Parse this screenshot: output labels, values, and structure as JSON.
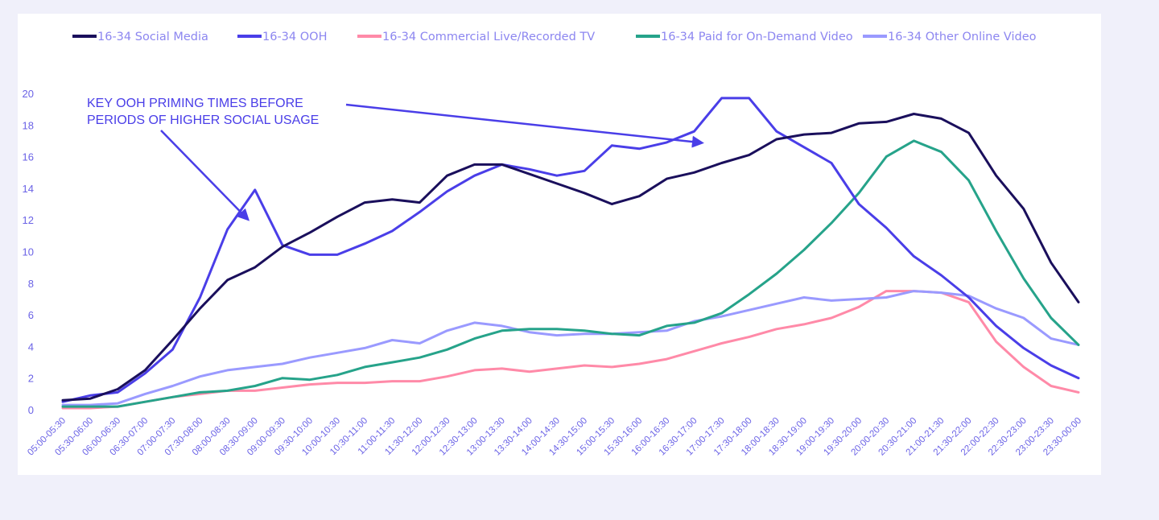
{
  "chart_data": {
    "type": "line",
    "title": "",
    "xlabel": "",
    "ylabel": "",
    "ylim": [
      0,
      20
    ],
    "yticks": [
      "0",
      "2",
      "4",
      "6",
      "8",
      "10",
      "12",
      "14",
      "16",
      "18",
      "20"
    ],
    "grid": false,
    "legend_position": "top",
    "categories": [
      "05:00-05:30",
      "05:30-06:00",
      "06:00-06:30",
      "06:30-07:00",
      "07:00-07:30",
      "07:30-08:00",
      "08:00-08:30",
      "08:30-09:00",
      "09:00-09:30",
      "09:30-10:00",
      "10:00-10:30",
      "10:30-11:00",
      "11:00-11:30",
      "11:30-12:00",
      "12:00-12:30",
      "12:30-13:00",
      "13:00-13:30",
      "13:30-14:00",
      "14:00-14:30",
      "14:30-15:00",
      "15:00-15:30",
      "15:30-16:00",
      "16:00-16:30",
      "16:30-17:00",
      "17:00-17:30",
      "17:30-18:00",
      "18:00-18:30",
      "18:30-19:00",
      "19:00-19:30",
      "19:30-20:00",
      "20:00-20:30",
      "20:30-21:00",
      "21:00-21:30",
      "21:30-22:00",
      "22:00-22:30",
      "22:30-23:00",
      "23:00-23:30",
      "23:30-00:00"
    ],
    "series": [
      {
        "name": "16-34 Social Media",
        "color": "#1a0f5c",
        "values": [
          0.6,
          0.7,
          1.3,
          2.5,
          4.4,
          6.4,
          8.2,
          9.0,
          10.3,
          11.2,
          12.2,
          13.1,
          13.3,
          13.1,
          14.8,
          15.5,
          15.5,
          14.9,
          14.3,
          13.7,
          13.0,
          13.5,
          14.6,
          15.0,
          15.6,
          16.1,
          17.1,
          17.4,
          17.5,
          18.1,
          18.2,
          18.7,
          18.4,
          17.5,
          14.8,
          12.7,
          9.3,
          6.8
        ]
      },
      {
        "name": "16-34 OOH",
        "color": "#4a3ee8",
        "values": [
          0.5,
          0.9,
          1.1,
          2.3,
          3.8,
          7.1,
          11.4,
          13.9,
          10.4,
          9.8,
          9.8,
          10.5,
          11.3,
          12.5,
          13.8,
          14.8,
          15.5,
          15.2,
          14.8,
          15.1,
          16.7,
          16.5,
          16.9,
          17.6,
          19.7,
          19.7,
          17.6,
          16.6,
          15.6,
          13.0,
          11.5,
          9.7,
          8.5,
          7.1,
          5.3,
          3.9,
          2.8,
          2.0
        ]
      },
      {
        "name": "16-34 Commercial Live/Recorded TV",
        "color": "#ff8aa8",
        "values": [
          0.1,
          0.1,
          0.2,
          0.5,
          0.8,
          1.0,
          1.2,
          1.2,
          1.4,
          1.6,
          1.7,
          1.7,
          1.8,
          1.8,
          2.1,
          2.5,
          2.6,
          2.4,
          2.6,
          2.8,
          2.7,
          2.9,
          3.2,
          3.7,
          4.2,
          4.6,
          5.1,
          5.4,
          5.8,
          6.5,
          7.5,
          7.5,
          7.4,
          6.8,
          4.3,
          2.7,
          1.5,
          1.1
        ]
      },
      {
        "name": "16-34 Paid for On-Demand Video",
        "color": "#26a38a",
        "values": [
          0.2,
          0.2,
          0.2,
          0.5,
          0.8,
          1.1,
          1.2,
          1.5,
          2.0,
          1.9,
          2.2,
          2.7,
          3.0,
          3.3,
          3.8,
          4.5,
          5.0,
          5.1,
          5.1,
          5.0,
          4.8,
          4.7,
          5.3,
          5.5,
          6.1,
          7.3,
          8.6,
          10.1,
          11.8,
          13.7,
          16.0,
          17.0,
          16.3,
          14.5,
          11.3,
          8.3,
          5.8,
          4.1
        ]
      },
      {
        "name": "16-34 Other Online Video",
        "color": "#9a9aff",
        "values": [
          0.3,
          0.3,
          0.4,
          1.0,
          1.5,
          2.1,
          2.5,
          2.7,
          2.9,
          3.3,
          3.6,
          3.9,
          4.4,
          4.2,
          5.0,
          5.5,
          5.3,
          4.9,
          4.7,
          4.8,
          4.8,
          4.9,
          5.0,
          5.6,
          5.9,
          6.3,
          6.7,
          7.1,
          6.9,
          7.0,
          7.1,
          7.5,
          7.4,
          7.2,
          6.4,
          5.8,
          4.5,
          4.1
        ]
      }
    ],
    "annotations": [
      {
        "text_lines": [
          "KEY OOH PRIMING TIMES BEFORE",
          "PERIODS OF HIGHER SOCIAL USAGE"
        ],
        "color": "#4a3ee8",
        "arrows_point_to": [
          "08:30-09:00",
          "16:30-17:00"
        ]
      }
    ]
  }
}
